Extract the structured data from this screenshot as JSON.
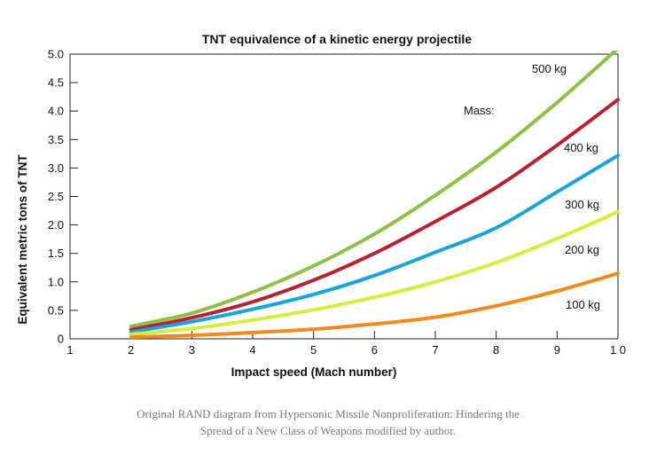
{
  "chart_data": {
    "type": "line",
    "title": "TNT equivalence of a kinetic energy projectile",
    "xlabel": "Impact speed (Mach number)",
    "ylabel": "Equivalent metric tons of TNT",
    "xlim": [
      1,
      10
    ],
    "ylim": [
      0,
      5.0
    ],
    "x_ticks": [
      "1",
      "2",
      "3",
      "4",
      "5",
      "6",
      "7",
      "8",
      "9",
      "1 0"
    ],
    "y_ticks": [
      "0",
      "0.5",
      "1.0",
      "1.5",
      "2.0",
      "2.5",
      "3.0",
      "3.5",
      "4.0",
      "4.5",
      "5.0"
    ],
    "legend_title": "Mass:",
    "grid": false,
    "series": [
      {
        "name": "500 kg",
        "color": "#8dc044",
        "x": [
          2,
          3,
          4,
          5,
          6,
          7,
          8,
          9,
          10
        ],
        "y": [
          0.22,
          0.45,
          0.82,
          1.28,
          1.84,
          2.52,
          3.28,
          4.15,
          5.1
        ]
      },
      {
        "name": "400 kg",
        "color": "#b72130",
        "x": [
          2,
          3,
          4,
          5,
          6,
          7,
          8,
          9,
          10
        ],
        "y": [
          0.16,
          0.37,
          0.65,
          1.03,
          1.5,
          2.06,
          2.66,
          3.4,
          4.2
        ]
      },
      {
        "name": "300 kg",
        "color": "#1aa2db",
        "x": [
          2,
          3,
          4,
          5,
          6,
          7,
          8,
          9,
          10
        ],
        "y": [
          0.12,
          0.3,
          0.52,
          0.78,
          1.11,
          1.52,
          1.95,
          2.58,
          3.22
        ]
      },
      {
        "name": "200 kg",
        "color": "#d8ec3e",
        "x": [
          2,
          3,
          4,
          5,
          6,
          7,
          8,
          9,
          10
        ],
        "y": [
          0.08,
          0.18,
          0.33,
          0.51,
          0.73,
          1.0,
          1.34,
          1.76,
          2.23
        ]
      },
      {
        "name": "100 kg",
        "color": "#f08a1c",
        "x": [
          2,
          3,
          4,
          5,
          6,
          7,
          8,
          9,
          10
        ],
        "y": [
          0.03,
          0.06,
          0.11,
          0.17,
          0.26,
          0.38,
          0.58,
          0.84,
          1.15
        ]
      }
    ]
  },
  "caption": {
    "line1": "Original RAND diagram from Hypersonic Missile Nonproliferation: Hindering the",
    "line2": "Spread of a New Class of Weapons modified by author."
  }
}
